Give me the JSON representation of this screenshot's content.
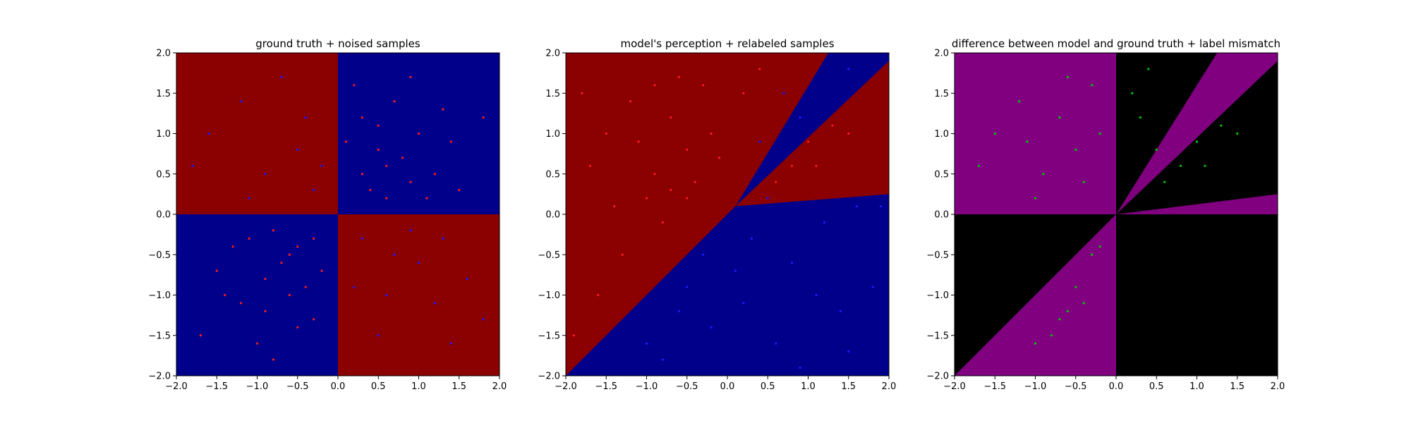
{
  "chart_data": [
    {
      "type": "scatter",
      "title": "ground truth + noised samples",
      "xlabel": "",
      "ylabel": "",
      "xlim": [
        -2.0,
        2.0
      ],
      "ylim": [
        -2.0,
        2.0
      ],
      "xticks": [
        "−2.0",
        "−1.5",
        "−1.0",
        "−0.5",
        "0.0",
        "0.5",
        "1.0",
        "1.5",
        "2.0"
      ],
      "yticks": [
        "2.0",
        "1.5",
        "1.0",
        "0.5",
        "0.0",
        "−0.5",
        "−1.0",
        "−1.5",
        "−2.0"
      ],
      "grid": false,
      "background_regions": [
        {
          "name": "",
          "color": "#8b0000",
          "polygon": [
            [
              -2,
              0
            ],
            [
              0,
              0
            ],
            [
              0,
              2
            ],
            [
              -2,
              2
            ]
          ]
        },
        {
          "name": "",
          "color": "#00008b",
          "polygon": [
            [
              0,
              0
            ],
            [
              2,
              0
            ],
            [
              2,
              2
            ],
            [
              0,
              2
            ]
          ]
        },
        {
          "name": "",
          "color": "#00008b",
          "polygon": [
            [
              -2,
              -2
            ],
            [
              0,
              -2
            ],
            [
              0,
              0
            ],
            [
              -2,
              0
            ]
          ]
        },
        {
          "name": "",
          "color": "#8b0000",
          "polygon": [
            [
              0,
              -2
            ],
            [
              2,
              -2
            ],
            [
              2,
              0
            ],
            [
              0,
              0
            ]
          ]
        }
      ],
      "series": [
        {
          "name": "",
          "color": "#ff1a1a",
          "points": [
            [
              0.3,
              1.2
            ],
            [
              0.5,
              0.8
            ],
            [
              0.9,
              0.4
            ],
            [
              1.4,
              0.9
            ],
            [
              0.2,
              1.6
            ],
            [
              0.7,
              1.4
            ],
            [
              1.1,
              0.2
            ],
            [
              0.4,
              0.3
            ],
            [
              1.8,
              1.2
            ],
            [
              0.6,
              0.6
            ],
            [
              1.0,
              1.0
            ],
            [
              0.8,
              0.7
            ],
            [
              0.3,
              0.5
            ],
            [
              1.2,
              0.5
            ],
            [
              0.5,
              1.1
            ],
            [
              0.9,
              1.7
            ],
            [
              1.5,
              0.3
            ],
            [
              0.1,
              0.9
            ],
            [
              0.6,
              0.2
            ],
            [
              1.3,
              1.3
            ],
            [
              -0.6,
              -0.5
            ],
            [
              -0.9,
              -0.8
            ],
            [
              -0.3,
              -0.3
            ],
            [
              -1.2,
              -1.1
            ],
            [
              -0.5,
              -1.4
            ],
            [
              -0.8,
              -0.2
            ],
            [
              -1.5,
              -0.7
            ],
            [
              -0.4,
              -0.9
            ],
            [
              -1.0,
              -1.6
            ],
            [
              -0.7,
              -0.6
            ],
            [
              -0.2,
              -0.7
            ],
            [
              -1.3,
              -0.4
            ],
            [
              -0.9,
              -1.2
            ],
            [
              -0.6,
              -1.0
            ],
            [
              -1.7,
              -1.5
            ],
            [
              -0.3,
              -1.3
            ],
            [
              -1.1,
              -0.3
            ],
            [
              -0.5,
              -0.4
            ],
            [
              -0.8,
              -1.8
            ],
            [
              -1.4,
              -1.0
            ]
          ]
        },
        {
          "name": "",
          "color": "#1a1aff",
          "points": [
            [
              -0.5,
              0.8
            ],
            [
              -1.2,
              1.4
            ],
            [
              -0.3,
              0.3
            ],
            [
              -0.9,
              0.5
            ],
            [
              -1.6,
              1.0
            ],
            [
              -0.7,
              1.7
            ],
            [
              -1.1,
              0.2
            ],
            [
              -0.4,
              1.2
            ],
            [
              -1.8,
              0.6
            ],
            [
              -0.2,
              0.6
            ],
            [
              0.7,
              -0.5
            ],
            [
              1.2,
              -1.1
            ],
            [
              0.3,
              -0.3
            ],
            [
              1.6,
              -0.8
            ],
            [
              0.5,
              -1.5
            ],
            [
              0.9,
              -0.2
            ],
            [
              1.4,
              -1.6
            ],
            [
              0.2,
              -0.9
            ],
            [
              1.0,
              -0.6
            ],
            [
              1.8,
              -1.3
            ],
            [
              0.6,
              -1.0
            ],
            [
              1.3,
              -0.3
            ]
          ]
        }
      ]
    },
    {
      "type": "scatter",
      "title": "model's perception + relabeled samples",
      "xlabel": "",
      "ylabel": "",
      "xlim": [
        -2.0,
        2.0
      ],
      "ylim": [
        -2.0,
        2.0
      ],
      "xticks": [
        "−2.0",
        "−1.5",
        "−1.0",
        "−0.5",
        "0.0",
        "0.5",
        "1.0",
        "1.5",
        "2.0"
      ],
      "yticks": [
        "2.0",
        "1.5",
        "1.0",
        "0.5",
        "0.0",
        "−0.5",
        "−1.0",
        "−1.5",
        "−2.0"
      ],
      "grid": false,
      "background_regions": [
        {
          "name": "",
          "color": "#00008b",
          "polygon": [
            [
              -2,
              -2
            ],
            [
              2,
              -2
            ],
            [
              2,
              2
            ],
            [
              -2,
              2
            ]
          ]
        },
        {
          "name": "",
          "color": "#8b0000",
          "polygon": [
            [
              0.1,
              0.1
            ],
            [
              1.25,
              2
            ],
            [
              -2,
              2
            ],
            [
              -2,
              -2
            ]
          ]
        },
        {
          "name": "",
          "color": "#8b0000",
          "polygon": [
            [
              0.1,
              0.1
            ],
            [
              2,
              1.9
            ],
            [
              2,
              0.25
            ]
          ]
        }
      ],
      "series": [
        {
          "name": "",
          "color": "#ff1a1a",
          "points": [
            [
              -1.2,
              1.4
            ],
            [
              -0.5,
              0.8
            ],
            [
              -0.9,
              0.5
            ],
            [
              -1.5,
              1.0
            ],
            [
              -0.3,
              1.6
            ],
            [
              -0.7,
              1.2
            ],
            [
              -1.0,
              0.2
            ],
            [
              -0.4,
              0.4
            ],
            [
              -1.7,
              0.6
            ],
            [
              -0.2,
              1.0
            ],
            [
              -1.3,
              -0.5
            ],
            [
              -1.6,
              -1.0
            ],
            [
              -0.8,
              -0.1
            ],
            [
              -1.1,
              0.9
            ],
            [
              -0.6,
              1.7
            ],
            [
              -1.8,
              1.5
            ],
            [
              -0.1,
              0.7
            ],
            [
              0.2,
              1.5
            ],
            [
              0.4,
              1.8
            ],
            [
              -0.5,
              0.2
            ],
            [
              0.8,
              0.6
            ],
            [
              1.0,
              0.9
            ],
            [
              1.3,
              1.1
            ],
            [
              0.6,
              0.4
            ],
            [
              1.5,
              1.0
            ],
            [
              1.1,
              0.6
            ],
            [
              -1.4,
              0.1
            ],
            [
              -0.9,
              1.6
            ],
            [
              -1.9,
              -1.5
            ],
            [
              -0.7,
              0.3
            ]
          ]
        },
        {
          "name": "",
          "color": "#1a1aff",
          "points": [
            [
              0.3,
              -0.3
            ],
            [
              -0.5,
              -0.9
            ],
            [
              0.8,
              -0.6
            ],
            [
              1.4,
              -1.2
            ],
            [
              -0.2,
              -1.4
            ],
            [
              0.6,
              -1.6
            ],
            [
              1.2,
              -0.1
            ],
            [
              -0.8,
              -1.8
            ],
            [
              1.8,
              -0.9
            ],
            [
              0.1,
              -0.7
            ],
            [
              -1.0,
              -1.6
            ],
            [
              0.9,
              -1.9
            ],
            [
              1.6,
              0.1
            ],
            [
              0.4,
              0.9
            ],
            [
              0.7,
              1.5
            ],
            [
              -0.3,
              -0.5
            ],
            [
              1.1,
              -1.0
            ],
            [
              0.2,
              -1.1
            ],
            [
              -0.6,
              -1.2
            ],
            [
              1.5,
              -1.7
            ],
            [
              0.5,
              0.2
            ],
            [
              1.9,
              0.1
            ],
            [
              0.9,
              1.2
            ],
            [
              1.5,
              1.8
            ]
          ]
        }
      ]
    },
    {
      "type": "scatter",
      "title": "difference between model and ground truth + label mismatch",
      "xlabel": "",
      "ylabel": "",
      "xlim": [
        -2.0,
        2.0
      ],
      "ylim": [
        -2.0,
        2.0
      ],
      "xticks": [
        "−2.0",
        "−1.5",
        "−1.0",
        "−0.5",
        "0.0",
        "0.5",
        "1.0",
        "1.5",
        "2.0"
      ],
      "yticks": [
        "2.0",
        "1.5",
        "1.0",
        "0.5",
        "0.0",
        "−0.5",
        "−1.0",
        "−1.5",
        "−2.0"
      ],
      "grid": false,
      "background_regions": [
        {
          "name": "",
          "color": "#000000",
          "polygon": [
            [
              -2,
              -2
            ],
            [
              2,
              -2
            ],
            [
              2,
              2
            ],
            [
              -2,
              2
            ]
          ]
        },
        {
          "name": "",
          "color": "#800080",
          "polygon": [
            [
              -2,
              0
            ],
            [
              0,
              0
            ],
            [
              0,
              2
            ],
            [
              -2,
              2
            ]
          ]
        },
        {
          "name": "",
          "color": "#800080",
          "polygon": [
            [
              -2,
              -2
            ],
            [
              0,
              0
            ],
            [
              0,
              -2
            ]
          ]
        },
        {
          "name": "",
          "color": "#800080",
          "polygon": [
            [
              0,
              0
            ],
            [
              1.25,
              2
            ],
            [
              2,
              2
            ],
            [
              2,
              1.9
            ]
          ]
        },
        {
          "name": "",
          "color": "#800080",
          "polygon": [
            [
              0,
              0
            ],
            [
              2,
              0.25
            ],
            [
              2,
              0
            ]
          ]
        }
      ],
      "series": [
        {
          "name": "",
          "color": "#00c800",
          "points": [
            [
              -1.2,
              1.4
            ],
            [
              -0.5,
              0.8
            ],
            [
              -0.9,
              0.5
            ],
            [
              -1.5,
              1.0
            ],
            [
              -0.3,
              1.6
            ],
            [
              -0.7,
              1.2
            ],
            [
              -1.0,
              0.2
            ],
            [
              -0.4,
              0.4
            ],
            [
              -1.7,
              0.6
            ],
            [
              -0.2,
              1.0
            ],
            [
              -1.1,
              0.9
            ],
            [
              -0.6,
              1.7
            ],
            [
              0.2,
              1.5
            ],
            [
              0.4,
              1.8
            ],
            [
              0.8,
              0.6
            ],
            [
              1.0,
              0.9
            ],
            [
              1.3,
              1.1
            ],
            [
              0.6,
              0.4
            ],
            [
              1.5,
              1.0
            ],
            [
              1.1,
              0.6
            ],
            [
              0.3,
              1.2
            ],
            [
              0.5,
              0.8
            ],
            [
              -0.5,
              -0.9
            ],
            [
              -0.3,
              -0.5
            ],
            [
              -1.0,
              -1.6
            ],
            [
              -0.6,
              -1.2
            ],
            [
              -0.2,
              -0.4
            ],
            [
              -0.8,
              -1.5
            ],
            [
              -0.4,
              -1.1
            ],
            [
              -0.7,
              -1.3
            ]
          ]
        }
      ]
    }
  ]
}
